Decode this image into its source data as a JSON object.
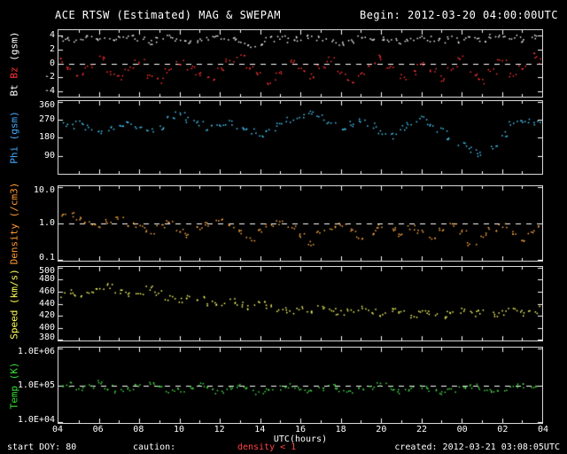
{
  "header": {
    "title": "ACE RTSW (Estimated) MAG & SWEPAM",
    "begin": "Begin: 2012-03-20 04:00:00UTC"
  },
  "footer": {
    "start_doy": "start DOY: 80",
    "caution": "caution:",
    "density_note": "density < 1",
    "density_note_color": "#ff4444",
    "created": "created: 2012-03-21 03:08:05UTC"
  },
  "chart_data": {
    "type": "scatter",
    "title": "ACE RTSW (Estimated) MAG & SWEPAM",
    "xlabel": "UTC(hours)",
    "x": {
      "start": 4,
      "step": 0.5,
      "end": 28,
      "unit": "hours UTC, 2012-03-20 04:00 to 2012-03-21 04:00"
    },
    "xticks": [
      {
        "v": 4,
        "t": "04"
      },
      {
        "v": 6,
        "t": "06"
      },
      {
        "v": 8,
        "t": "08"
      },
      {
        "v": 10,
        "t": "10"
      },
      {
        "v": 12,
        "t": "12"
      },
      {
        "v": 14,
        "t": "14"
      },
      {
        "v": 16,
        "t": "16"
      },
      {
        "v": 18,
        "t": "18"
      },
      {
        "v": 20,
        "t": "20"
      },
      {
        "v": 22,
        "t": "22"
      },
      {
        "v": 24,
        "t": "00"
      },
      {
        "v": 26,
        "t": "02"
      },
      {
        "v": 28,
        "t": "04"
      }
    ],
    "panels": [
      {
        "name": "bt-bz",
        "scale": "linear",
        "ylim": [
          -4.8,
          4.8
        ],
        "yticks": [
          {
            "v": 4,
            "t": "4"
          },
          {
            "v": 2,
            "t": "2"
          },
          {
            "v": 0,
            "t": "0"
          },
          {
            "v": -2,
            "t": "-2"
          },
          {
            "v": -4,
            "t": "-4"
          }
        ],
        "dashed": [
          0
        ],
        "label_parts": [
          {
            "text": "Bt ",
            "color": "#ffffff"
          },
          {
            "text": "Bz ",
            "color": "#ff3333"
          },
          {
            "text": "(gsm)",
            "color": "#ffffff"
          }
        ],
        "series": [
          {
            "name": "Bt",
            "color": "#f0f0f0",
            "values": [
              3.6,
              3.8,
              3.5,
              3.9,
              3.7,
              3.4,
              3.8,
              4.0,
              3.6,
              3.2,
              3.5,
              3.8,
              3.4,
              3.0,
              3.3,
              3.7,
              3.9,
              3.5,
              3.2,
              2.8,
              3.1,
              3.6,
              3.8,
              3.4,
              3.6,
              3.9,
              3.7,
              3.3,
              3.0,
              3.4,
              3.7,
              3.5,
              3.8,
              3.6,
              3.2,
              3.5,
              3.9,
              3.6,
              3.3,
              3.7,
              3.4,
              3.8,
              3.5,
              3.9,
              4.1,
              3.8,
              3.5,
              3.9,
              4.2
            ]
          },
          {
            "name": "Bz",
            "color": "#ff3333",
            "values": [
              0.5,
              -0.8,
              -1.5,
              -0.4,
              0.8,
              -1.2,
              -2.0,
              -0.6,
              0.3,
              -1.8,
              -2.4,
              -1.0,
              0.2,
              -0.5,
              -1.6,
              -2.2,
              -0.8,
              0.6,
              1.0,
              -0.4,
              -1.4,
              -2.6,
              -1.2,
              0.4,
              -0.9,
              -1.8,
              -0.3,
              0.7,
              -1.1,
              -2.3,
              -1.5,
              -0.2,
              0.9,
              -0.7,
              -1.9,
              -1.3,
              0.1,
              -1.0,
              -2.1,
              -0.5,
              0.8,
              -1.4,
              -2.5,
              -1.1,
              0.3,
              -1.7,
              -0.6,
              1.2,
              0.4
            ]
          }
        ]
      },
      {
        "name": "phi",
        "scale": "linear",
        "ylim": [
          0,
          360
        ],
        "yticks": [
          {
            "v": 360,
            "t": "360"
          },
          {
            "v": 270,
            "t": "270"
          },
          {
            "v": 180,
            "t": "180"
          },
          {
            "v": 90,
            "t": "90"
          }
        ],
        "dashed": [],
        "label_parts": [
          {
            "text": "Phi (gsm)",
            "color": "#44aaff"
          }
        ],
        "series": [
          {
            "name": "Phi",
            "color": "#44ccff",
            "values": [
              250,
              240,
              255,
              230,
              210,
              225,
              245,
              260,
              240,
              220,
              235,
              280,
              300,
              270,
              250,
              230,
              240,
              255,
              235,
              215,
              200,
              220,
              250,
              270,
              290,
              310,
              280,
              255,
              235,
              250,
              270,
              240,
              210,
              190,
              230,
              260,
              280,
              250,
              220,
              180,
              150,
              120,
              100,
              140,
              200,
              250,
              270,
              260,
              265
            ]
          }
        ]
      },
      {
        "name": "density",
        "scale": "log",
        "ylim": [
          0.1,
          10
        ],
        "yticks": [
          {
            "v": 10,
            "t": "10.0"
          },
          {
            "v": 1,
            "t": "1.0"
          },
          {
            "v": 0.1,
            "t": "0.1"
          }
        ],
        "dashed": [
          1
        ],
        "label_parts": [
          {
            "text": "Density (/cm3)",
            "color": "#ff9933"
          }
        ],
        "series": [
          {
            "name": "Density",
            "color": "#ffaa44",
            "values": [
              1.6,
              1.8,
              1.4,
              1.1,
              0.9,
              1.2,
              1.5,
              1.0,
              0.8,
              0.6,
              0.9,
              1.1,
              0.7,
              0.5,
              0.8,
              1.0,
              1.2,
              0.9,
              0.6,
              0.4,
              0.7,
              0.9,
              1.1,
              0.8,
              0.5,
              0.3,
              0.6,
              0.8,
              1.0,
              0.7,
              0.4,
              0.6,
              0.9,
              0.7,
              0.5,
              0.8,
              0.6,
              0.4,
              0.7,
              0.9,
              0.6,
              0.3,
              0.5,
              0.7,
              0.9,
              0.6,
              0.4,
              0.6,
              0.8
            ]
          }
        ]
      },
      {
        "name": "speed",
        "scale": "linear",
        "ylim": [
          380,
          500
        ],
        "yticks": [
          {
            "v": 500,
            "t": "500"
          },
          {
            "v": 480,
            "t": "480"
          },
          {
            "v": 460,
            "t": "460"
          },
          {
            "v": 440,
            "t": "440"
          },
          {
            "v": 420,
            "t": "420"
          },
          {
            "v": 400,
            "t": "400"
          },
          {
            "v": 380,
            "t": "380"
          }
        ],
        "dashed": [],
        "label_parts": [
          {
            "text": "Speed (km/s)",
            "color": "#ffff55"
          }
        ],
        "series": [
          {
            "name": "Speed",
            "color": "#ffff66",
            "values": [
              455,
              460,
              452,
              458,
              465,
              470,
              462,
              455,
              460,
              468,
              458,
              450,
              445,
              452,
              448,
              442,
              438,
              445,
              440,
              435,
              442,
              438,
              432,
              428,
              435,
              430,
              436,
              432,
              426,
              430,
              434,
              428,
              424,
              430,
              426,
              422,
              428,
              424,
              420,
              426,
              430,
              425,
              428,
              424,
              427,
              430,
              426,
              429,
              432
            ]
          }
        ]
      },
      {
        "name": "temp",
        "scale": "log",
        "ylim": [
          10000,
          1000000
        ],
        "yticks": [
          {
            "v": 1000000,
            "t": "1.0E+06"
          },
          {
            "v": 100000,
            "t": "1.0E+05"
          },
          {
            "v": 10000,
            "t": "1.0E+04"
          }
        ],
        "dashed": [
          100000
        ],
        "label_parts": [
          {
            "text": "Temp (K)",
            "color": "#33dd33"
          }
        ],
        "series": [
          {
            "name": "Temp",
            "color": "#44dd44",
            "values": [
              90000,
              110000,
              80000,
              100000,
              120000,
              90000,
              70000,
              85000,
              100000,
              110000,
              90000,
              75000,
              80000,
              95000,
              105000,
              85000,
              70000,
              90000,
              100000,
              80000,
              65000,
              75000,
              90000,
              100000,
              85000,
              70000,
              80000,
              95000,
              80000,
              68000,
              78000,
              90000,
              105000,
              85000,
              72000,
              82000,
              95000,
              80000,
              65000,
              75000,
              88000,
              100000,
              82000,
              70000,
              80000,
              92000,
              100000,
              90000,
              95000
            ]
          }
        ]
      }
    ]
  }
}
